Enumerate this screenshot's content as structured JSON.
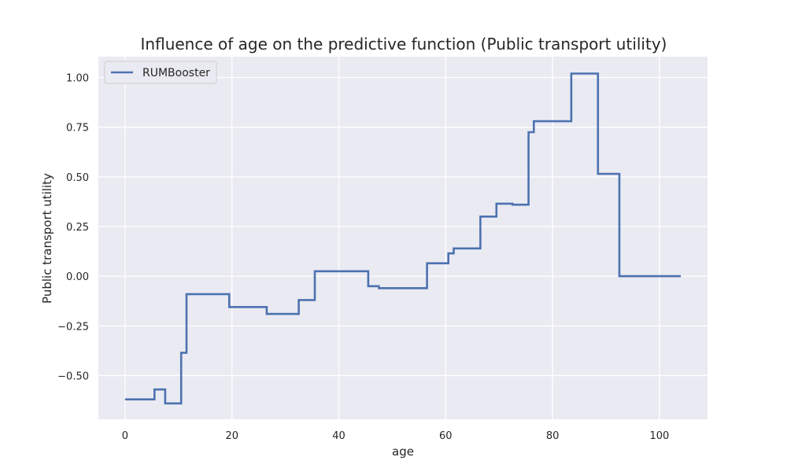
{
  "chart_data": {
    "type": "line",
    "step": "post",
    "title": "Influence of age on the predictive function (Public transport utility)",
    "xlabel": "age",
    "ylabel": "Public transport utility",
    "xlim": [
      -5,
      109
    ],
    "ylim": [
      -0.72,
      1.105
    ],
    "xticks": [
      0,
      20,
      40,
      60,
      80,
      100
    ],
    "xtick_labels": [
      "0",
      "20",
      "40",
      "60",
      "80",
      "100"
    ],
    "yticks": [
      -0.5,
      -0.25,
      0.0,
      0.25,
      0.5,
      0.75,
      1.0
    ],
    "ytick_labels": [
      "−0.50",
      "−0.25",
      "0.00",
      "0.25",
      "0.50",
      "0.75",
      "1.00"
    ],
    "grid": true,
    "legend_position": "upper-left",
    "series": [
      {
        "name": "RUMBooster",
        "color": "#4c72b0",
        "x": [
          0,
          5.5,
          7.5,
          10.5,
          11.5,
          19.5,
          26.5,
          32.5,
          35.5,
          45.5,
          47.5,
          56.5,
          60.5,
          61.5,
          66.5,
          69.5,
          72.5,
          75.5,
          76.5,
          83.5,
          88.5,
          92.5,
          104
        ],
        "y": [
          -0.62,
          -0.57,
          -0.64,
          -0.385,
          -0.09,
          -0.155,
          -0.19,
          -0.12,
          0.025,
          -0.05,
          -0.06,
          0.065,
          0.115,
          0.14,
          0.3,
          0.365,
          0.36,
          0.725,
          0.78,
          1.02,
          0.515,
          0.0,
          0.0
        ]
      }
    ]
  }
}
